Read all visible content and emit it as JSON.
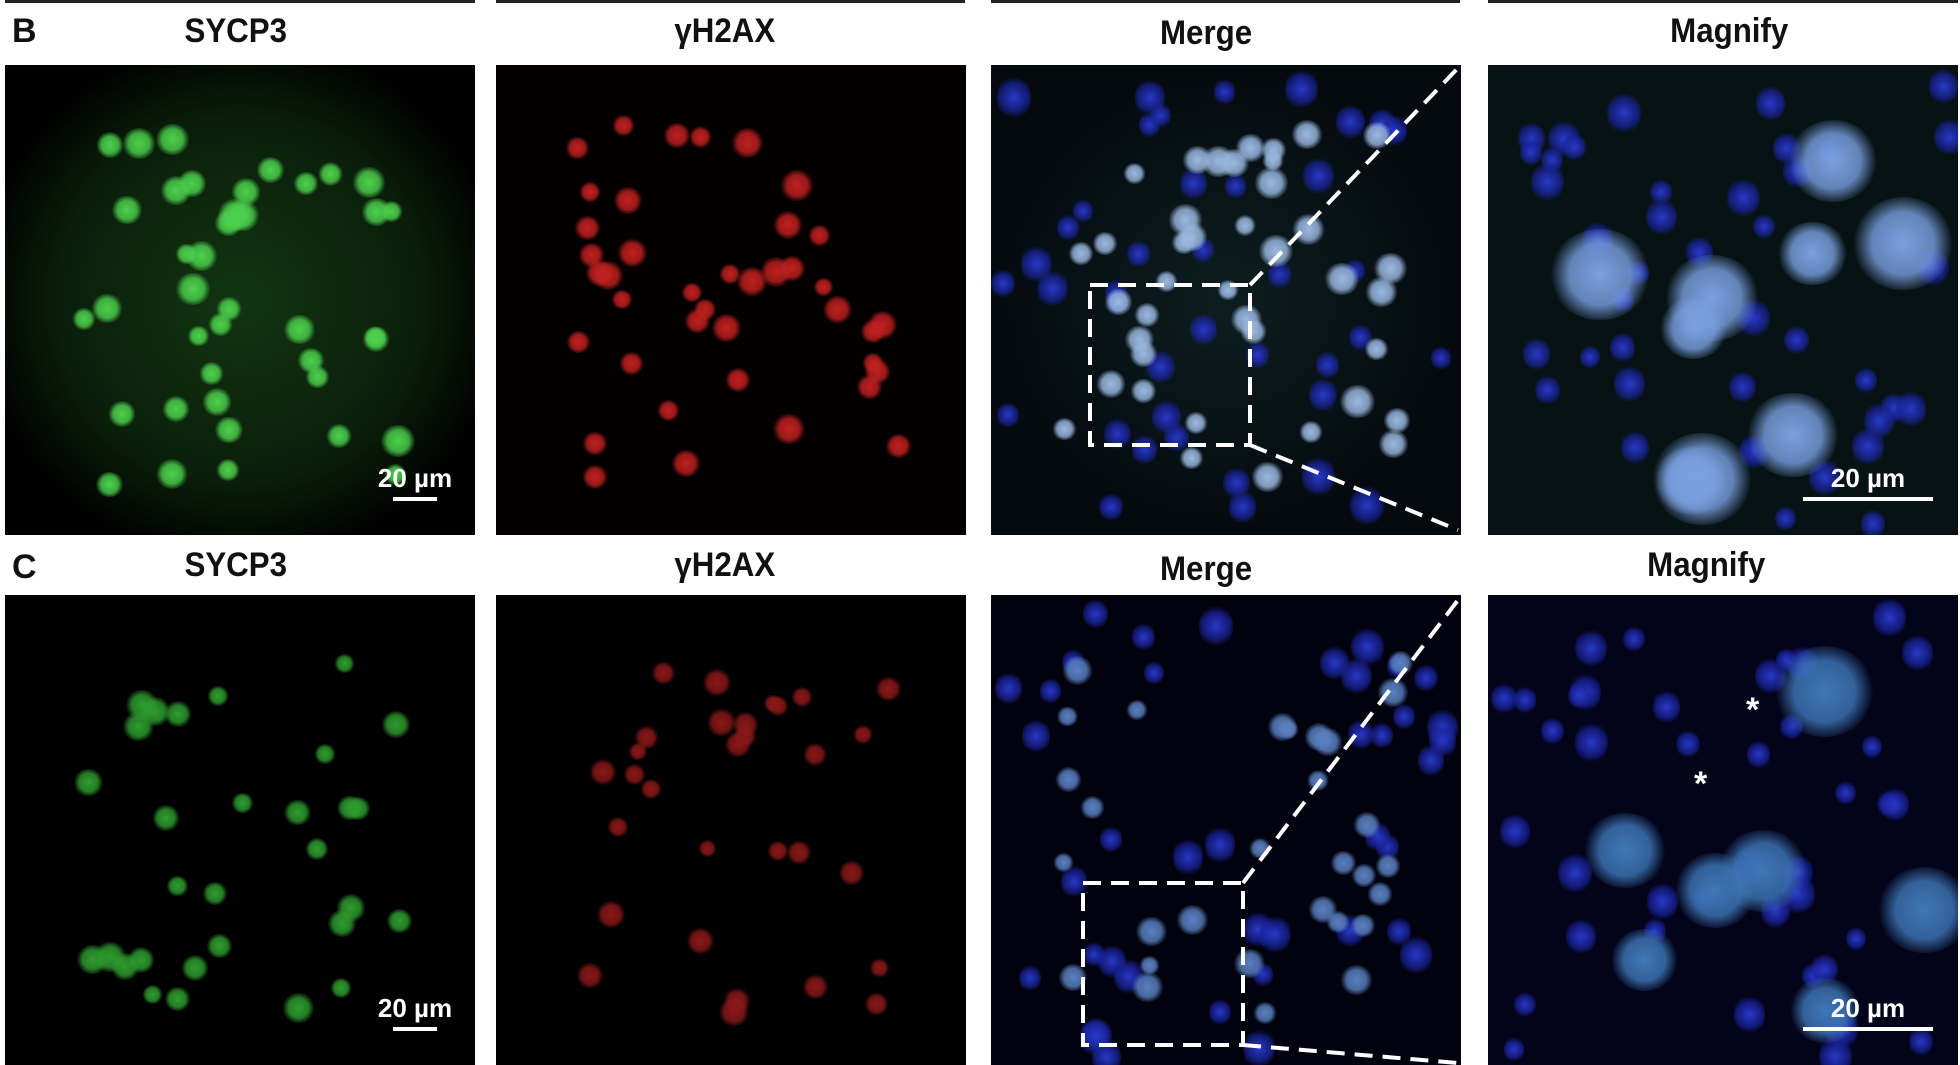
{
  "rows": [
    {
      "letter": "B",
      "headers": [
        "SYCP3",
        "γH2AX",
        "Merge",
        "Magnify"
      ],
      "scale_bar_label": "20 µm"
    },
    {
      "letter": "C",
      "headers": [
        "SYCP3",
        "γH2AX",
        "Merge",
        "Magnify"
      ],
      "scale_bar_label": "20 µm",
      "annotations": [
        "*",
        "*"
      ]
    }
  ],
  "channel_colors": {
    "SYCP3": "#3cc83c",
    "γH2AX": "#d02020",
    "DAPI": "#2030c0"
  }
}
